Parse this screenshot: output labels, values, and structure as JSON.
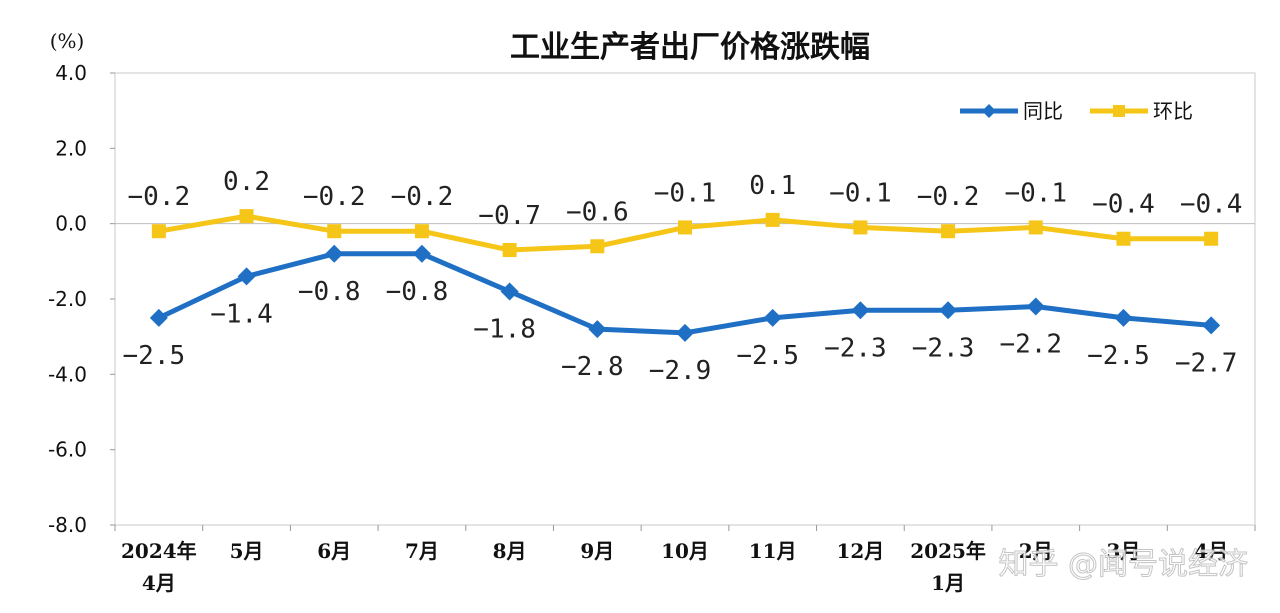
{
  "chart_data": {
    "type": "line",
    "title": "工业生产者出厂价格涨跌幅",
    "unit": "(%)",
    "categories": [
      [
        "2024年",
        "4月"
      ],
      [
        "5月"
      ],
      [
        "6月"
      ],
      [
        "7月"
      ],
      [
        "8月"
      ],
      [
        "9月"
      ],
      [
        "10月"
      ],
      [
        "11月"
      ],
      [
        "12月"
      ],
      [
        "2025年",
        "1月"
      ],
      [
        "2月"
      ],
      [
        "3月"
      ],
      [
        "4月"
      ]
    ],
    "ylim": [
      -8.0,
      4.0
    ],
    "yticks": [
      "4.0",
      "2.0",
      "0.0",
      "-2.0",
      "-4.0",
      "-6.0",
      "-8.0"
    ],
    "grid": false,
    "legend_position": "top-right",
    "series": [
      {
        "name": "同比",
        "color": "#1f6fc5",
        "marker": "diamond",
        "values": [
          -2.5,
          -1.4,
          -0.8,
          -0.8,
          -1.8,
          -2.8,
          -2.9,
          -2.5,
          -2.3,
          -2.3,
          -2.2,
          -2.5,
          -2.7
        ],
        "labels": [
          "-2.5",
          "-1.4",
          "-0.8",
          "-0.8",
          "-1.8",
          "-2.8",
          "-2.9",
          "-2.5",
          "-2.3",
          "-2.3",
          "-2.2",
          "-2.5",
          "-2.7"
        ]
      },
      {
        "name": "环比",
        "color": "#f5c518",
        "marker": "square",
        "values": [
          -0.2,
          0.2,
          -0.2,
          -0.2,
          -0.7,
          -0.6,
          -0.1,
          0.1,
          -0.1,
          -0.2,
          -0.1,
          -0.4,
          -0.4
        ],
        "labels": [
          "-0.2",
          "0.2",
          "-0.2",
          "-0.2",
          "-0.7",
          "-0.6",
          "-0.1",
          "0.1",
          "-0.1",
          "-0.2",
          "-0.1",
          "-0.4",
          "-0.4"
        ]
      }
    ]
  },
  "watermark": "知乎 @闻号说经济"
}
